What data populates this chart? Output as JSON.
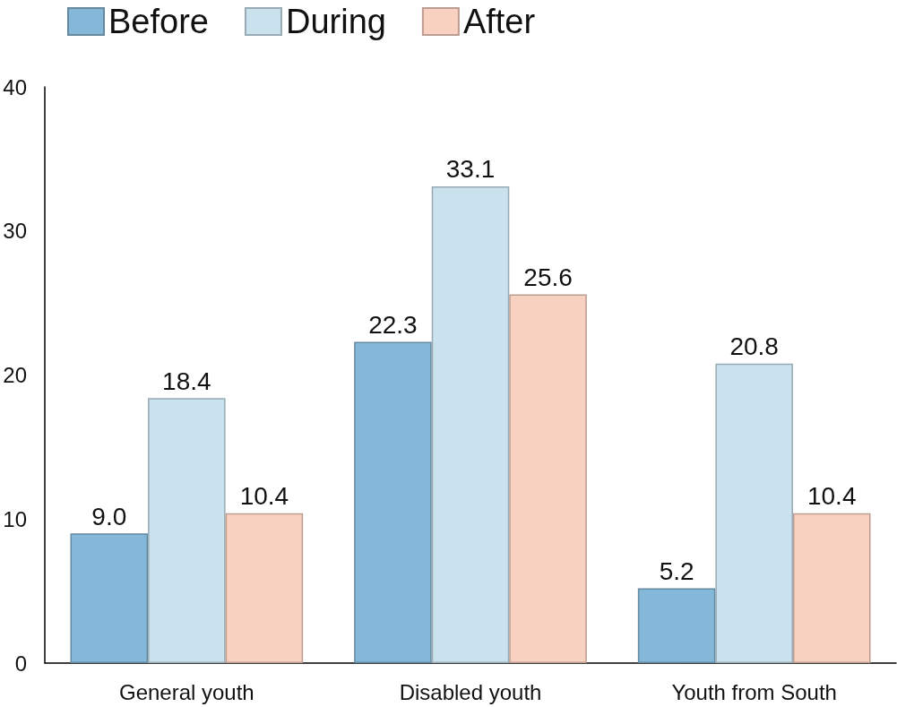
{
  "chart_data": {
    "type": "bar",
    "categories": [
      "General youth",
      "Disabled youth",
      "Youth from South"
    ],
    "series": [
      {
        "name": "Before",
        "color": "#85b8d8",
        "values": [
          9.0,
          22.3,
          5.2
        ],
        "value_labels": [
          "9.0",
          "22.3",
          "5.2"
        ]
      },
      {
        "name": "During",
        "color": "#cae2ee",
        "values": [
          18.4,
          33.1,
          20.8
        ],
        "value_labels": [
          "18.4",
          "33.1",
          "20.8"
        ]
      },
      {
        "name": "After",
        "color": "#f9d1c1",
        "values": [
          10.4,
          25.6,
          10.4
        ],
        "value_labels": [
          "10.4",
          "25.6",
          "10.4"
        ]
      }
    ],
    "ylim": [
      0,
      40
    ],
    "yticks": [
      0,
      10,
      20,
      30,
      40
    ],
    "grid": false,
    "legend": "top left"
  }
}
